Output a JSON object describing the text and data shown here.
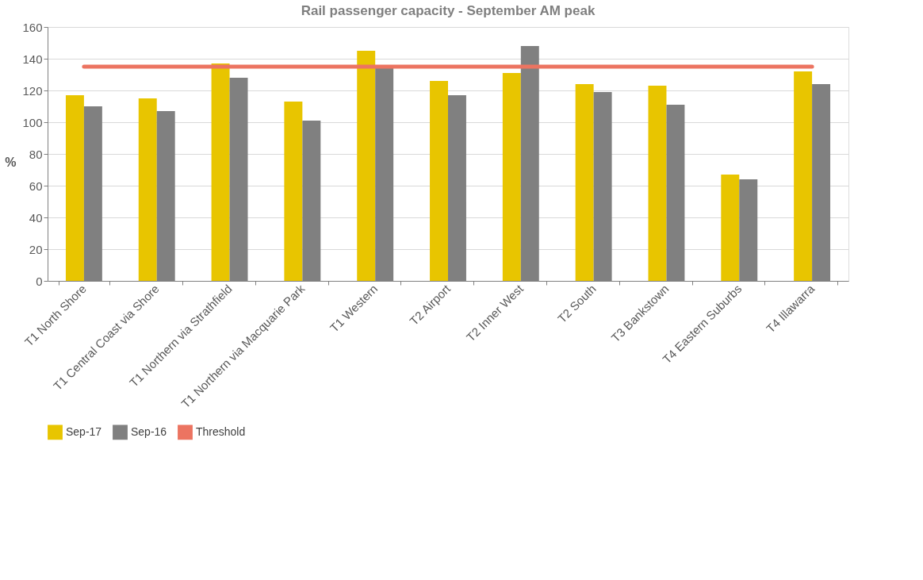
{
  "chart_data": {
    "type": "bar",
    "title": "Rail passenger capacity - September AM peak",
    "ylabel": "%",
    "categories": [
      "T1 North Shore",
      "T1 Central Coast via Shore",
      "T1 Northern via Strathfield",
      "T1 Northern via Macquarie Park",
      "T1 Western",
      "T2 Airport",
      "T2 Inner West",
      "T2 South",
      "T3 Bankstown",
      "T4 Eastern Suburbs",
      "T4 Illawarra"
    ],
    "series": [
      {
        "name": "Sep-17",
        "color": "#e8c500",
        "values": [
          117,
          115,
          137,
          113,
          145,
          126,
          131,
          124,
          123,
          67,
          132
        ]
      },
      {
        "name": "Sep-16",
        "color": "#808080",
        "values": [
          110,
          107,
          128,
          101,
          135,
          117,
          148,
          119,
          111,
          64,
          124
        ]
      },
      {
        "name": "Threshold",
        "type": "line",
        "color": "#ec7461",
        "values": [
          135,
          135,
          135,
          135,
          135,
          135,
          135,
          135,
          135,
          135,
          135
        ]
      }
    ],
    "ylim": [
      0,
      160
    ],
    "yticks": [
      0,
      20,
      40,
      60,
      80,
      100,
      120,
      140,
      160
    ],
    "grid": "y",
    "legend": "bottom"
  }
}
